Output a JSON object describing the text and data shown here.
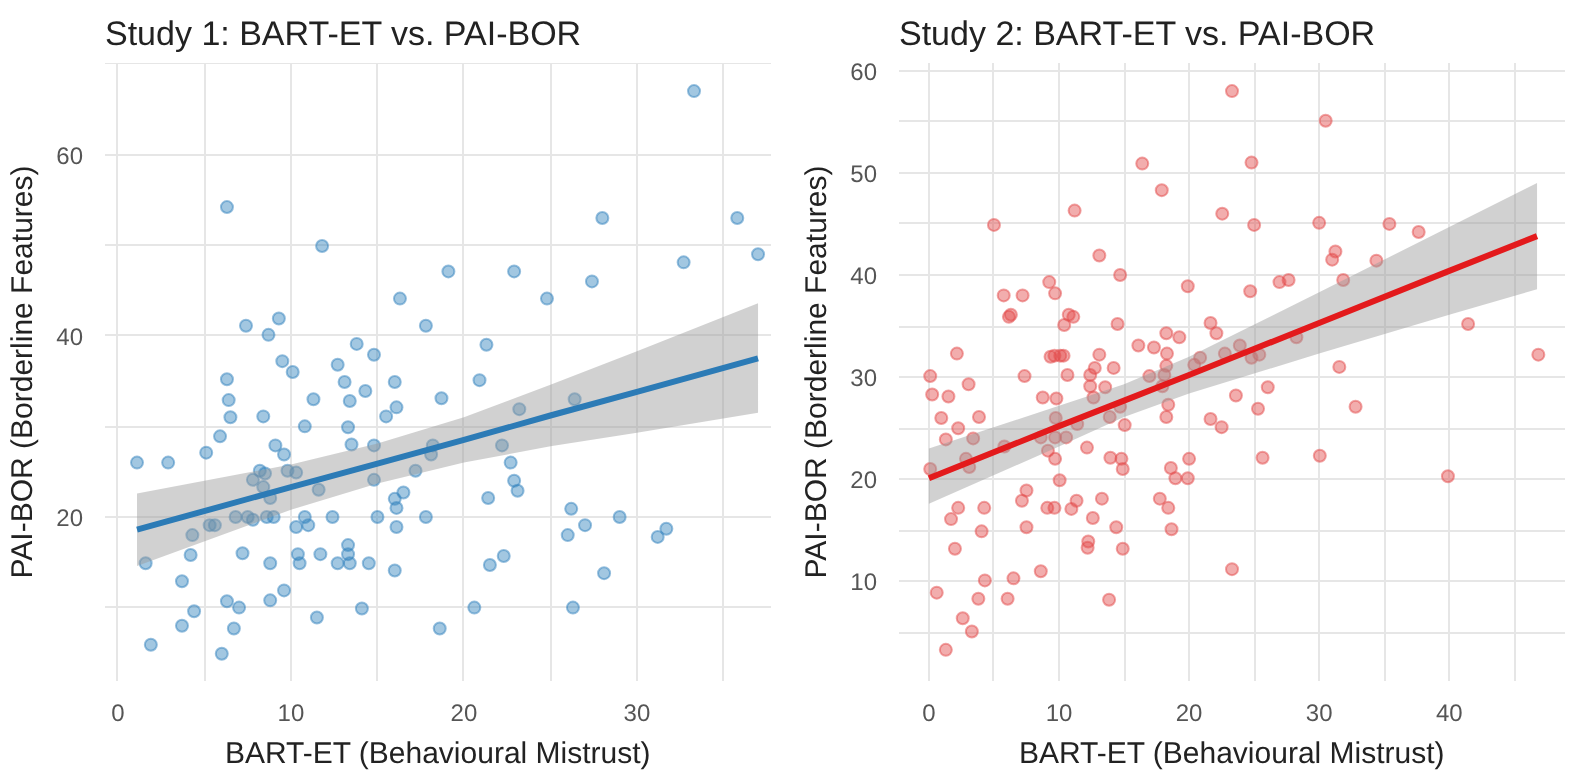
{
  "chart_data": [
    {
      "type": "scatter",
      "title": "Study 1: BART-ET vs. PAI-BOR",
      "xlabel": "BART-ET (Behavioural Mistrust)",
      "ylabel": "PAI-BOR (Borderline Features)",
      "xlim": [
        -0.75,
        37.75
      ],
      "ylim": [
        1.9,
        70.1
      ],
      "xticks": [
        0,
        {
          "value": 5,
          "label": null
        },
        10,
        {
          "value": 15,
          "label": null
        },
        20,
        {
          "value": 25,
          "label": null
        },
        30,
        {
          "value": 35,
          "label": null
        }
      ],
      "yticks": [
        {
          "value": 10,
          "label": null
        },
        20,
        {
          "value": 30,
          "label": null
        },
        40,
        {
          "value": 50,
          "label": null
        },
        60,
        {
          "value": 70,
          "label": null
        }
      ],
      "grid": true,
      "series": [
        {
          "marker": "circle",
          "color": "#3182bd",
          "x": [
            1.1,
            1.6,
            1.9,
            2.9,
            3.7,
            3.7,
            4.2,
            4.3,
            4.4,
            5.1,
            5.3,
            5.6,
            5.9,
            6.0,
            6.3,
            6.3,
            6.4,
            6.5,
            6.3,
            6.8,
            6.7,
            7.0,
            7.2,
            7.4,
            7.5,
            7.8,
            7.8,
            8.2,
            8.4,
            8.4,
            8.5,
            8.7,
            8.8,
            8.6,
            8.8,
            8.8,
            9.0,
            9.1,
            9.3,
            9.5,
            9.6,
            9.6,
            9.8,
            10.1,
            10.3,
            10.3,
            10.4,
            10.5,
            10.8,
            10.8,
            11.0,
            11.3,
            11.5,
            11.6,
            11.8,
            11.7,
            12.4,
            12.7,
            12.7,
            13.1,
            13.3,
            13.4,
            13.5,
            13.3,
            13.3,
            13.4,
            13.8,
            14.1,
            14.3,
            14.5,
            14.8,
            14.8,
            14.8,
            15.0,
            15.5,
            16.0,
            16.1,
            16.0,
            16.1,
            16.1,
            16.0,
            16.5,
            16.3,
            17.2,
            17.8,
            17.8,
            18.1,
            18.6,
            18.7,
            33.3,
            28.0,
            35.8,
            19.1,
            22.9,
            27.4,
            32.7,
            37.0,
            24.8,
            21.3,
            20.9,
            23.2,
            26.4,
            18.2,
            22.2,
            22.7,
            22.9,
            23.1,
            21.4,
            26.2,
            27.0,
            29.0,
            26.0,
            31.2,
            31.7,
            21.5,
            22.3,
            28.1,
            20.6,
            26.3
          ],
          "values": [
            26.0,
            14.9,
            5.9,
            26.0,
            12.9,
            8.0,
            15.8,
            18.0,
            9.6,
            27.1,
            19.1,
            19.1,
            28.9,
            4.9,
            54.2,
            35.2,
            32.9,
            31.0,
            10.7,
            20.0,
            7.7,
            10.0,
            16.0,
            41.1,
            20.0,
            24.1,
            19.7,
            25.1,
            31.1,
            23.3,
            24.8,
            40.1,
            22.1,
            20.0,
            10.8,
            14.9,
            20.0,
            27.9,
            41.9,
            37.2,
            26.9,
            11.9,
            25.1,
            36.0,
            18.9,
            24.9,
            15.9,
            14.9,
            30.0,
            20.0,
            19.1,
            33.0,
            8.9,
            23.0,
            49.9,
            15.9,
            20.0,
            36.8,
            14.9,
            34.9,
            29.9,
            32.8,
            28.0,
            16.9,
            15.9,
            14.9,
            39.1,
            9.9,
            33.9,
            14.9,
            37.9,
            27.9,
            24.1,
            20.0,
            31.1,
            34.9,
            32.1,
            22.0,
            21.0,
            18.9,
            14.1,
            22.7,
            44.1,
            25.1,
            41.1,
            20.0,
            26.9,
            7.7,
            33.1,
            67.0,
            53.0,
            53.0,
            47.1,
            47.1,
            46.0,
            48.1,
            49.0,
            44.1,
            39.0,
            35.1,
            31.9,
            33.0,
            27.9,
            27.9,
            26.0,
            24.0,
            22.9,
            22.1,
            20.9,
            19.1,
            20.0,
            18.0,
            17.8,
            18.7,
            14.7,
            15.7,
            13.8,
            10.0,
            10.0
          ]
        },
        {
          "type": "line",
          "marker": "none",
          "color": "#2c7bb6",
          "x": [
            1.1,
            10,
            15,
            20,
            25,
            30,
            37
          ],
          "values": [
            18.6,
            23.3,
            25.9,
            28.5,
            31.2,
            33.8,
            37.5
          ],
          "lower": [
            14.6,
            20.8,
            23.7,
            26.0,
            27.8,
            29.3,
            31.5
          ],
          "upper": [
            22.6,
            25.8,
            28.1,
            31.0,
            34.6,
            38.3,
            43.6
          ]
        }
      ]
    },
    {
      "type": "scatter",
      "title": "Study 2: BART-ET vs. PAI-BOR",
      "xlabel": "BART-ET (Behavioural Mistrust)",
      "ylabel": "PAI-BOR (Borderline Features)",
      "xlim": [
        -2.3,
        48.9
      ],
      "ylim": [
        0.25,
        60.75
      ],
      "xticks": [
        0,
        {
          "value": 5,
          "label": null
        },
        10,
        {
          "value": 15,
          "label": null
        },
        20,
        {
          "value": 25,
          "label": null
        },
        30,
        {
          "value": 35,
          "label": null
        },
        40,
        {
          "value": 45,
          "label": null
        }
      ],
      "yticks": [
        {
          "value": 5,
          "label": null
        },
        10,
        {
          "value": 15,
          "label": null
        },
        20,
        {
          "value": 25,
          "label": null
        },
        30,
        {
          "value": 35,
          "label": null
        },
        40,
        {
          "value": 45,
          "label": null
        },
        50,
        {
          "value": 55,
          "label": null
        },
        60
      ],
      "grid": true,
      "series": [
        {
          "marker": "circle",
          "color": "#e34a4a",
          "x": [
            0.1,
            0.25,
            0.1,
            0.6,
            0.95,
            1.3,
            1.3,
            1.5,
            1.7,
            2.0,
            2.15,
            2.25,
            2.25,
            2.6,
            3.05,
            2.85,
            3.1,
            3.3,
            3.4,
            3.85,
            3.8,
            4.05,
            4.3,
            4.25,
            5.0,
            5.75,
            5.8,
            6.05,
            6.15,
            6.3,
            6.5,
            7.2,
            7.15,
            7.35,
            7.5,
            7.5,
            8.6,
            8.75,
            8.6,
            9.25,
            9.15,
            9.1,
            9.35,
            9.7,
            9.65,
            9.8,
            9.75,
            9.7,
            9.7,
            9.65,
            10.05,
            10.1,
            10.35,
            10.4,
            10.55,
            10.65,
            10.75,
            10.95,
            11.1,
            11.2,
            11.35,
            11.4,
            12.15,
            12.25,
            12.2,
            12.4,
            12.4,
            12.65,
            12.75,
            12.6,
            13.1,
            13.1,
            13.3,
            13.55,
            13.85,
            13.9,
            13.95,
            14.2,
            14.4,
            14.5,
            14.7,
            14.7,
            14.8,
            14.9,
            14.9,
            15.05,
            16.1,
            16.4,
            16.95,
            17.3,
            17.75,
            17.9,
            17.95,
            18.1,
            18.25,
            18.3,
            18.25,
            18.25,
            18.4,
            18.4,
            18.6,
            18.65,
            18.95,
            19.25,
            19.9,
            19.9,
            20.0,
            20.4,
            20.85,
            23.3,
            30.5,
            24.8,
            22.55,
            25.0,
            30.0,
            35.4,
            37.65,
            31.25,
            31.0,
            34.4,
            27.65,
            26.95,
            31.85,
            24.7,
            21.65,
            22.1,
            41.45,
            28.25,
            22.75,
            23.9,
            24.8,
            25.4,
            46.85,
            31.55,
            26.05,
            23.6,
            25.3,
            32.8,
            21.65,
            22.5,
            25.65,
            30.05,
            39.9,
            23.3
          ],
          "values": [
            30.1,
            28.3,
            21.0,
            8.9,
            26.0,
            3.3,
            23.9,
            28.1,
            16.1,
            13.2,
            32.3,
            17.2,
            25.0,
            6.4,
            29.3,
            22.0,
            21.2,
            5.1,
            24.0,
            26.1,
            8.3,
            14.9,
            10.1,
            17.2,
            44.9,
            38.0,
            23.2,
            8.3,
            35.9,
            36.1,
            10.3,
            38.0,
            17.9,
            30.1,
            18.9,
            15.3,
            11.0,
            28.0,
            24.1,
            39.3,
            22.8,
            17.2,
            32.0,
            38.2,
            32.1,
            27.9,
            26.0,
            24.1,
            22.0,
            17.2,
            19.9,
            32.1,
            32.1,
            35.1,
            24.1,
            30.2,
            36.1,
            17.1,
            35.9,
            46.3,
            17.9,
            25.4,
            23.1,
            13.9,
            13.3,
            30.2,
            29.1,
            28.0,
            30.9,
            16.2,
            32.2,
            41.9,
            18.1,
            29.0,
            8.2,
            26.1,
            22.1,
            30.9,
            15.3,
            35.2,
            40.0,
            27.1,
            22.0,
            21.0,
            13.2,
            25.3,
            33.1,
            50.9,
            30.1,
            32.9,
            18.1,
            48.3,
            29.1,
            30.2,
            34.3,
            32.3,
            31.1,
            26.1,
            27.3,
            17.2,
            21.1,
            15.1,
            20.1,
            33.9,
            38.9,
            20.1,
            22.0,
            31.2,
            31.9,
            58.0,
            55.1,
            51.0,
            46.0,
            44.9,
            45.1,
            45.0,
            44.2,
            42.3,
            41.5,
            41.4,
            39.5,
            39.3,
            39.5,
            38.4,
            35.3,
            34.3,
            35.2,
            33.9,
            32.3,
            33.1,
            31.9,
            32.2,
            32.2,
            31.0,
            29.0,
            28.2,
            26.9,
            27.1,
            25.9,
            25.1,
            22.1,
            22.3,
            20.3,
            11.2
          ]
        },
        {
          "type": "line",
          "marker": "none",
          "color": "#e31a1c",
          "x": [
            0,
            10,
            15,
            20,
            30,
            40,
            46.75
          ],
          "values": [
            20.1,
            25.2,
            27.7,
            30.2,
            35.3,
            40.4,
            43.8
          ],
          "lower": [
            17.6,
            23.2,
            26.1,
            28.4,
            32.3,
            36.1,
            38.6
          ],
          "upper": [
            23.0,
            27.2,
            29.3,
            32.0,
            38.3,
            44.7,
            49.0
          ]
        }
      ]
    }
  ]
}
